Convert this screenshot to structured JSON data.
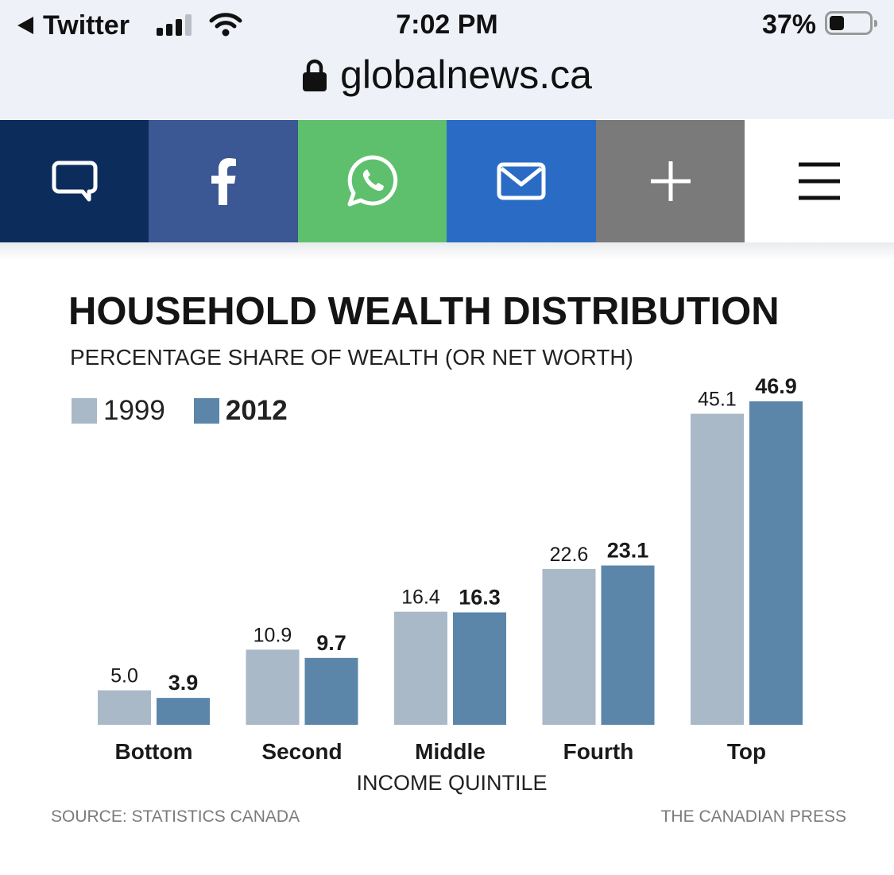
{
  "status_bar": {
    "back_app": "Twitter",
    "time": "7:02 PM",
    "battery_percent": "37%",
    "battery_level": 0.37,
    "signal_bars": 3
  },
  "browser": {
    "url": "globalnews.ca"
  },
  "share_bar": {
    "buttons": [
      {
        "icon": "comment-icon",
        "color": "#0c2d5c"
      },
      {
        "icon": "facebook-icon",
        "color": "#3b5794"
      },
      {
        "icon": "whatsapp-icon",
        "color": "#5ec06d"
      },
      {
        "icon": "email-icon",
        "color": "#2a6cc5"
      },
      {
        "icon": "plus-icon",
        "color": "#7a7a7a"
      },
      {
        "icon": "menu-icon",
        "color": "#ffffff"
      }
    ]
  },
  "chart_data": {
    "type": "bar",
    "title": "HOUSEHOLD WEALTH DISTRIBUTION",
    "subtitle": "PERCENTAGE SHARE OF WEALTH (OR NET WORTH)",
    "categories": [
      "Bottom",
      "Second",
      "Middle",
      "Fourth",
      "Top"
    ],
    "series": [
      {
        "name": "1999",
        "color": "#a9b9c8",
        "values": [
          5.0,
          10.9,
          16.4,
          22.6,
          45.1
        ],
        "labels": [
          "5.0",
          "10.9",
          "16.4",
          "22.6",
          "45.1"
        ]
      },
      {
        "name": "2012",
        "color": "#5b86aa",
        "values": [
          3.9,
          9.7,
          16.3,
          23.1,
          46.9
        ],
        "labels": [
          "3.9",
          "9.7",
          "16.3",
          "23.1",
          "46.9"
        ]
      }
    ],
    "xlabel": "INCOME QUINTILE",
    "ylabel": "",
    "ylim": [
      0,
      46.9
    ],
    "legend": "top-left",
    "grid": false,
    "source": "SOURCE: STATISTICS CANADA",
    "credit": "THE CANADIAN PRESS"
  }
}
